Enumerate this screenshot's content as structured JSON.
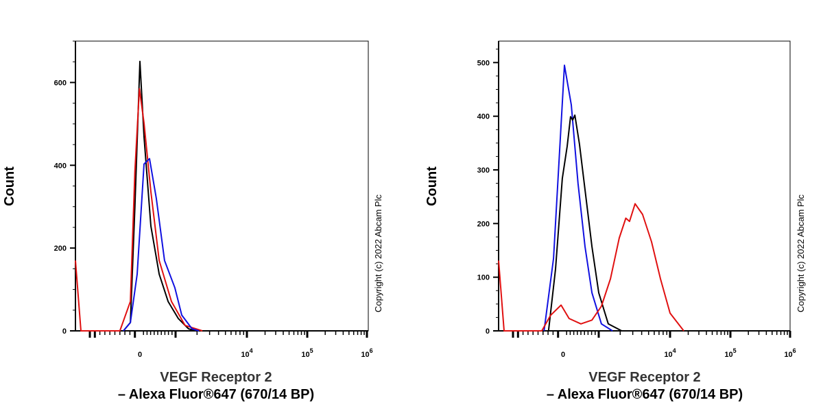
{
  "chart_data": [
    {
      "type": "line",
      "xlabel": [
        "VEGF Receptor 2",
        "– Alexa Fluor®647 (670/14 BP)"
      ],
      "ylabel": "Count",
      "x_scale": "biexponential",
      "x_ticks": [
        {
          "value": 0,
          "label": "0"
        },
        {
          "value": 10000,
          "label": "10",
          "sup": "4"
        },
        {
          "value": 100000,
          "label": "10",
          "sup": "5"
        },
        {
          "value": 1000000,
          "label": "10",
          "sup": "6"
        }
      ],
      "y_ticks": [
        0,
        200,
        400,
        600
      ],
      "ylim": [
        0,
        700
      ],
      "copyright": "Copyright (c) 2022 Abcam Plc",
      "series": [
        {
          "color": "#000000",
          "points": [
            [
              -330,
              0
            ],
            [
              -190,
              20
            ],
            [
              -100,
              300
            ],
            [
              0,
              651
            ],
            [
              115,
              469
            ],
            [
              308,
              253
            ],
            [
              540,
              137
            ],
            [
              790,
              71
            ],
            [
              1090,
              30
            ],
            [
              1520,
              5
            ],
            [
              1900,
              0
            ]
          ]
        },
        {
          "color": "#e01010",
          "points": [
            [
              -1288,
              170
            ],
            [
              -1178,
              0
            ],
            [
              -400,
              0
            ],
            [
              -190,
              71
            ],
            [
              -100,
              386
            ],
            [
              -10,
              585
            ],
            [
              115,
              502
            ],
            [
              308,
              336
            ],
            [
              540,
              170
            ],
            [
              885,
              71
            ],
            [
              1360,
              13
            ],
            [
              2370,
              0
            ]
          ]
        },
        {
          "color": "#1010e0",
          "points": [
            [
              -330,
              0
            ],
            [
              -190,
              20
            ],
            [
              -55,
              137
            ],
            [
              115,
              403
            ],
            [
              270,
              416
            ],
            [
              460,
              320
            ],
            [
              690,
              170
            ],
            [
              980,
              104
            ],
            [
              1220,
              38
            ],
            [
              1700,
              5
            ],
            [
              2120,
              0
            ]
          ]
        }
      ]
    },
    {
      "type": "line",
      "xlabel": [
        "VEGF Receptor 2",
        "– Alexa Fluor®647 (670/14 BP)"
      ],
      "ylabel": "Count",
      "x_scale": "biexponential",
      "x_ticks": [
        {
          "value": 0,
          "label": "0"
        },
        {
          "value": 10000,
          "label": "10",
          "sup": "4"
        },
        {
          "value": 100000,
          "label": "10",
          "sup": "5"
        },
        {
          "value": 1000000,
          "label": "10",
          "sup": "6"
        }
      ],
      "y_ticks": [
        0,
        100,
        200,
        300,
        400,
        500
      ],
      "ylim": [
        0,
        540
      ],
      "copyright": "Copyright (c) 2022 Abcam Plc",
      "series": [
        {
          "color": "#1010e0",
          "points": [
            [
              -380,
              0
            ],
            [
              -190,
              135
            ],
            [
              38,
              495
            ],
            [
              230,
              421
            ],
            [
              420,
              275
            ],
            [
              615,
              157
            ],
            [
              810,
              71
            ],
            [
              1090,
              13
            ],
            [
              1560,
              0
            ]
          ]
        },
        {
          "color": "#000000",
          "points": [
            [
              -290,
              0
            ],
            [
              -150,
              115
            ],
            [
              -15,
              284
            ],
            [
              115,
              344
            ],
            [
              210,
              399
            ],
            [
              270,
              393
            ],
            [
              330,
              402
            ],
            [
              460,
              348
            ],
            [
              615,
              263
            ],
            [
              810,
              157
            ],
            [
              1000,
              71
            ],
            [
              1360,
              13
            ],
            [
              2100,
              0
            ]
          ]
        },
        {
          "color": "#e01010",
          "points": [
            [
              -1288,
              131
            ],
            [
              -1178,
              0
            ],
            [
              -425,
              0
            ],
            [
              -250,
              29
            ],
            [
              -40,
              48
            ],
            [
              170,
              23
            ],
            [
              500,
              13
            ],
            [
              810,
              20
            ],
            [
              1090,
              46
            ],
            [
              1460,
              97
            ],
            [
              1940,
              173
            ],
            [
              2400,
              210
            ],
            [
              2700,
              204
            ],
            [
              3230,
              237
            ],
            [
              4120,
              217
            ],
            [
              5500,
              166
            ],
            [
              7340,
              97
            ],
            [
              10000,
              33
            ],
            [
              16880,
              0
            ]
          ]
        }
      ]
    }
  ]
}
